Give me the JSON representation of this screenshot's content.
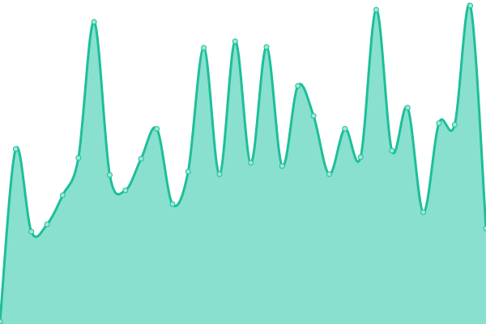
{
  "chart_data": {
    "type": "area",
    "title": "",
    "xlabel": "",
    "ylabel": "",
    "grid": false,
    "legend": "none",
    "curve": "smooth",
    "markers": true,
    "x": [
      0,
      1,
      2,
      3,
      4,
      5,
      6,
      7,
      8,
      9,
      10,
      11,
      12,
      13,
      14,
      15,
      16,
      17,
      18,
      19,
      20,
      21,
      22,
      23,
      24,
      25,
      26,
      27,
      28,
      29,
      30,
      31
    ],
    "ylim": [
      0,
      400
    ],
    "series": [
      {
        "values": [
          3,
          216,
          114,
          123,
          159,
          205,
          373,
          184,
          165,
          204,
          241,
          148,
          188,
          341,
          185,
          349,
          199,
          342,
          195,
          294,
          257,
          185,
          241,
          206,
          388,
          214,
          267,
          138,
          248,
          246,
          393,
          118
        ]
      }
    ],
    "colors": {
      "line": "#1dbf99",
      "fill": "#89e0cf",
      "marker_fill": "#9de8d6"
    }
  }
}
